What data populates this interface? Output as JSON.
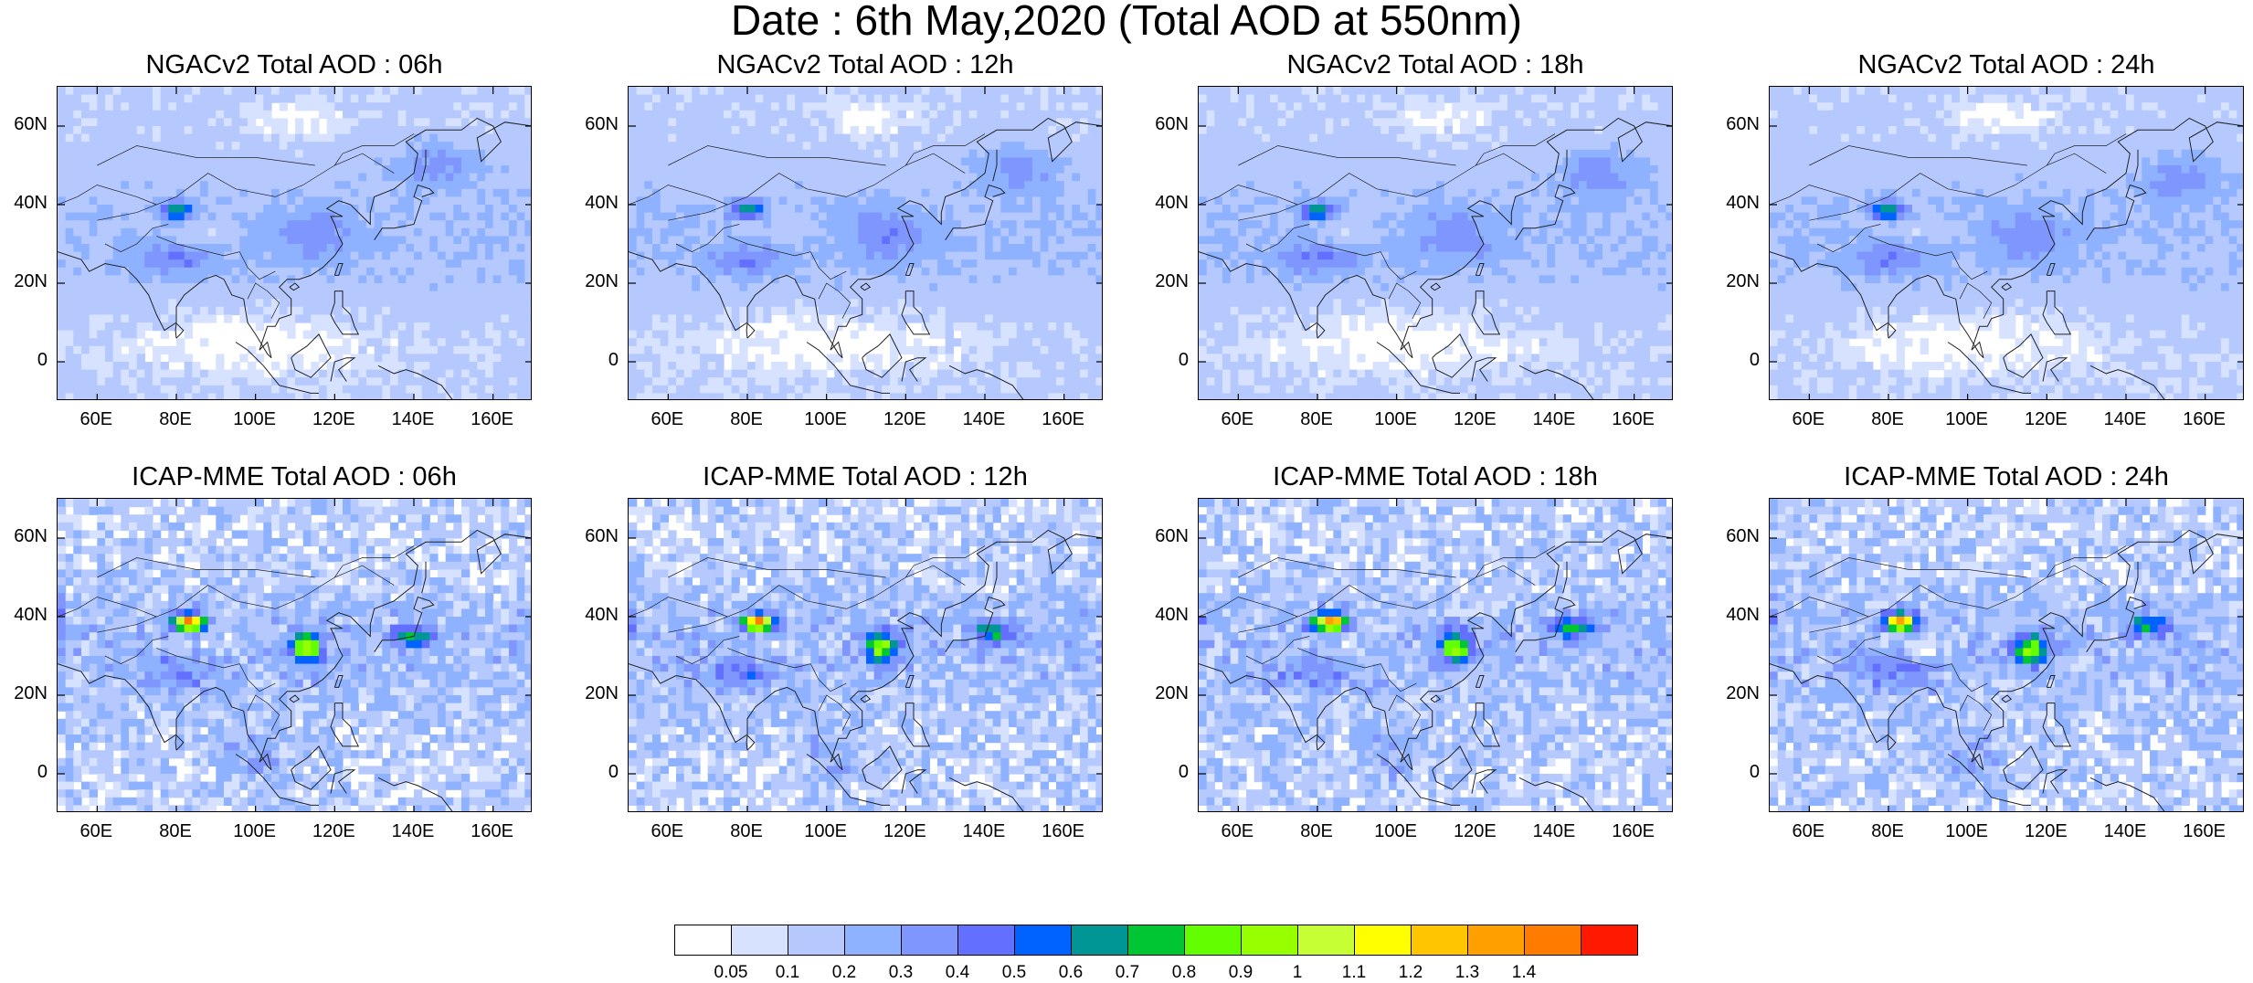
{
  "title": "Date : 6th May,2020 (Total AOD at 550nm)",
  "panels": [
    {
      "title": "NGACv2 Total AOD : 06h",
      "model": "NGACv2",
      "hour": "06h"
    },
    {
      "title": "NGACv2 Total AOD : 12h",
      "model": "NGACv2",
      "hour": "12h"
    },
    {
      "title": "NGACv2 Total AOD : 18h",
      "model": "NGACv2",
      "hour": "18h"
    },
    {
      "title": "NGACv2 Total AOD : 24h",
      "model": "NGACv2",
      "hour": "24h"
    },
    {
      "title": "ICAP-MME Total AOD : 06h",
      "model": "ICAP-MME",
      "hour": "06h"
    },
    {
      "title": "ICAP-MME Total AOD : 12h",
      "model": "ICAP-MME",
      "hour": "12h"
    },
    {
      "title": "ICAP-MME Total AOD : 18h",
      "model": "ICAP-MME",
      "hour": "18h"
    },
    {
      "title": "ICAP-MME Total AOD : 24h",
      "model": "ICAP-MME",
      "hour": "24h"
    }
  ],
  "axes": {
    "lat_labels": [
      "60N",
      "40N",
      "20N",
      "0"
    ],
    "lat_values": [
      60,
      40,
      20,
      0
    ],
    "lon_labels": [
      "60E",
      "80E",
      "100E",
      "120E",
      "140E",
      "160E"
    ],
    "lon_values": [
      60,
      80,
      100,
      120,
      140,
      160
    ],
    "lon_range": [
      50,
      170
    ],
    "lat_range": [
      -10,
      70
    ]
  },
  "colorbar": {
    "labels": [
      "0.05",
      "0.1",
      "0.2",
      "0.3",
      "0.4",
      "0.5",
      "0.6",
      "0.7",
      "0.8",
      "0.9",
      "1",
      "1.1",
      "1.2",
      "1.3",
      "1.4"
    ],
    "colors": [
      "#ffffff",
      "#d6e2ff",
      "#b5c9ff",
      "#8eb2ff",
      "#7f96ff",
      "#6370ff",
      "#0063ff",
      "#009696",
      "#00c633",
      "#63ff00",
      "#96ff00",
      "#c6ff33",
      "#ffff00",
      "#ffc600",
      "#ffa000",
      "#ff7c00",
      "#ff1900"
    ]
  }
}
